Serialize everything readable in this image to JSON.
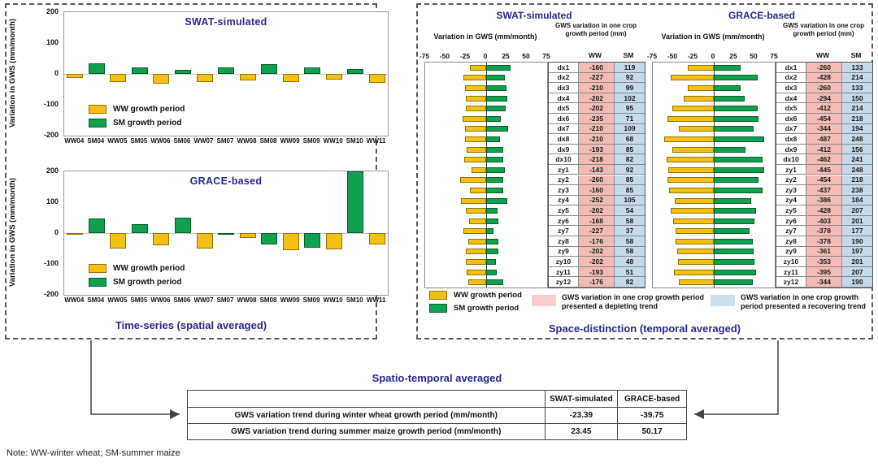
{
  "colors": {
    "ww_fill": "#F4C013",
    "ww_border": "#8F7500",
    "sm_fill": "#10A150",
    "sm_border": "#075E2D",
    "navy": "#28288E",
    "pink": "#F4BBB6",
    "blue": "#C6D9EB",
    "legend_pink": "#F8CFCC",
    "legend_blue": "#CEDFEE"
  },
  "note": "Note: WW-winter wheat; SM-summer maize",
  "left_panel": {
    "caption": "Time-series (spatial averaged)",
    "ylabel": "Variation in GWS (mm/month)",
    "legend_ww": "WW growth period",
    "legend_sm": "SM growth period"
  },
  "right_panel": {
    "caption": "Space-distinction (temporal averaged)",
    "axis_label": "Variation in GWS (mm/month)",
    "table_header": "GWS variation in one crop growth period (mm)",
    "col_ww": "WW",
    "col_sm": "SM",
    "legend_ww": "WW growth period",
    "legend_sm": "SM growth period",
    "legend_depleting": "GWS variation in one crop growth period presented a depleting trend",
    "legend_recovering": "GWS variation in one crop growth period presented a recovering trend"
  },
  "bottom": {
    "title": "Spatio-temporal averaged",
    "table": {
      "columns": [
        "",
        "SWAT-simulated",
        "GRACE-based"
      ],
      "rows": [
        [
          "GWS variation trend during winter wheat growth period (mm/month)",
          "-23.39",
          "-39.75"
        ],
        [
          "GWS variation trend during summer maize growth period (mm/month)",
          "23.45",
          "50.17"
        ]
      ]
    }
  },
  "chart_data": [
    {
      "id": "swat-timeseries",
      "type": "bar",
      "title": "SWAT-simulated",
      "ylabel": "Variation in GWS (mm/month)",
      "ylim": [
        -200,
        200
      ],
      "yticks": [
        200,
        100,
        0,
        -100,
        -200
      ],
      "grid": false,
      "legend_position": "inside-bottom-left",
      "categories": [
        "WW04",
        "SM04",
        "WW05",
        "SM05",
        "WW06",
        "SM06",
        "WW07",
        "SM07",
        "WW08",
        "SM08",
        "WW09",
        "SM09",
        "WW10",
        "SM10",
        "WW11"
      ],
      "values": [
        -13,
        35,
        -25,
        22,
        -32,
        13,
        -27,
        20,
        -20,
        33,
        -25,
        21,
        -18,
        17,
        -28
      ],
      "legend": [
        "WW growth period",
        "SM growth period"
      ]
    },
    {
      "id": "grace-timeseries",
      "type": "bar",
      "title": "GRACE-based",
      "ylabel": "Variation in GWS (mm/month)",
      "ylim": [
        -200,
        200
      ],
      "yticks": [
        200,
        100,
        0,
        -100,
        -200
      ],
      "grid": false,
      "legend_position": "inside-bottom-left",
      "categories": [
        "WW04",
        "SM04",
        "WW05",
        "SM05",
        "WW06",
        "SM06",
        "WW07",
        "SM07",
        "WW08",
        "SM08",
        "WW09",
        "SM09",
        "WW10",
        "SM10",
        "WW11"
      ],
      "values": [
        -6,
        48,
        -50,
        30,
        -40,
        50,
        -50,
        -2,
        -15,
        -38,
        -55,
        -48,
        -53,
        200,
        -38
      ],
      "legend": [
        "WW growth period",
        "SM growth period"
      ]
    },
    {
      "id": "swat-space",
      "type": "bar",
      "orientation": "horizontal",
      "title": "SWAT-simulated",
      "xlabel": "Variation in GWS (mm/month)",
      "xlim": [
        -75,
        75
      ],
      "xticks": [
        -75,
        -50,
        -25,
        0,
        25,
        50,
        75
      ],
      "bars_note": "bar length = crop-period total divided by months (WW/8, SM/4), mm/month",
      "rows": [
        {
          "label": "dx1",
          "ww": -160,
          "sm": 119
        },
        {
          "label": "dx2",
          "ww": -227,
          "sm": 92
        },
        {
          "label": "dx3",
          "ww": -210,
          "sm": 99
        },
        {
          "label": "dx4",
          "ww": -202,
          "sm": 102
        },
        {
          "label": "dx5",
          "ww": -202,
          "sm": 95
        },
        {
          "label": "dx6",
          "ww": -235,
          "sm": 71
        },
        {
          "label": "dx7",
          "ww": -210,
          "sm": 109
        },
        {
          "label": "dx8",
          "ww": -210,
          "sm": 68
        },
        {
          "label": "dx9",
          "ww": -193,
          "sm": 85
        },
        {
          "label": "dx10",
          "ww": -218,
          "sm": 82
        },
        {
          "label": "zy1",
          "ww": -143,
          "sm": 92
        },
        {
          "label": "zy2",
          "ww": -260,
          "sm": 85
        },
        {
          "label": "zy3",
          "ww": -160,
          "sm": 85
        },
        {
          "label": "zy4",
          "ww": -252,
          "sm": 105
        },
        {
          "label": "zy5",
          "ww": -202,
          "sm": 54
        },
        {
          "label": "zy6",
          "ww": -168,
          "sm": 58
        },
        {
          "label": "zy7",
          "ww": -227,
          "sm": 37
        },
        {
          "label": "zy8",
          "ww": -176,
          "sm": 58
        },
        {
          "label": "zy9",
          "ww": -202,
          "sm": 58
        },
        {
          "label": "zy10",
          "ww": -202,
          "sm": 48
        },
        {
          "label": "zy11",
          "ww": -193,
          "sm": 51
        },
        {
          "label": "zy12",
          "ww": -176,
          "sm": 82
        }
      ]
    },
    {
      "id": "grace-space",
      "type": "bar",
      "orientation": "horizontal",
      "title": "GRACE-based",
      "xlabel": "Variation in GWS (mm/month)",
      "xlim": [
        -75,
        75
      ],
      "xticks": [
        -75,
        -50,
        -25,
        0,
        25,
        50,
        75
      ],
      "bars_note": "bar length = crop-period total divided by months (WW/8, SM/4), mm/month",
      "rows": [
        {
          "label": "dx1",
          "ww": -260,
          "sm": 133
        },
        {
          "label": "dx2",
          "ww": -428,
          "sm": 214
        },
        {
          "label": "dx3",
          "ww": -260,
          "sm": 133
        },
        {
          "label": "dx4",
          "ww": -294,
          "sm": 150
        },
        {
          "label": "dx5",
          "ww": -412,
          "sm": 214
        },
        {
          "label": "dx6",
          "ww": -454,
          "sm": 218
        },
        {
          "label": "dx7",
          "ww": -344,
          "sm": 194
        },
        {
          "label": "dx8",
          "ww": -487,
          "sm": 248
        },
        {
          "label": "dx9",
          "ww": -412,
          "sm": 156
        },
        {
          "label": "dx10",
          "ww": -462,
          "sm": 241
        },
        {
          "label": "zy1",
          "ww": -445,
          "sm": 248
        },
        {
          "label": "zy2",
          "ww": -454,
          "sm": 218
        },
        {
          "label": "zy3",
          "ww": -437,
          "sm": 238
        },
        {
          "label": "zy4",
          "ww": -386,
          "sm": 184
        },
        {
          "label": "zy5",
          "ww": -428,
          "sm": 207
        },
        {
          "label": "zy6",
          "ww": -403,
          "sm": 201
        },
        {
          "label": "zy7",
          "ww": -378,
          "sm": 177
        },
        {
          "label": "zy8",
          "ww": -378,
          "sm": 190
        },
        {
          "label": "zy9",
          "ww": -361,
          "sm": 197
        },
        {
          "label": "zy10",
          "ww": -353,
          "sm": 201
        },
        {
          "label": "zy11",
          "ww": -395,
          "sm": 207
        },
        {
          "label": "zy12",
          "ww": -344,
          "sm": 190
        }
      ]
    }
  ]
}
